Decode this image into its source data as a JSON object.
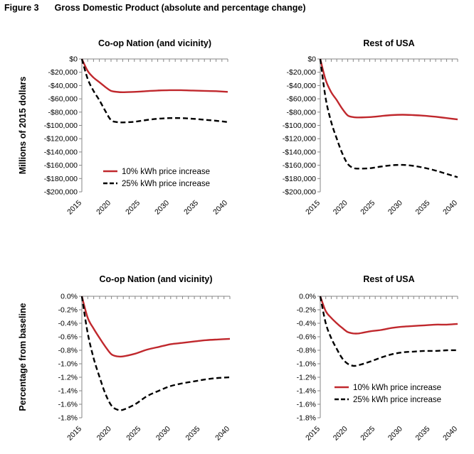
{
  "figure": {
    "number": "Figure 3",
    "title": "Gross Domestic Product (absolute and percentage change)"
  },
  "colors": {
    "series_10": "#c0282d",
    "series_25": "#000000",
    "axis": "#868686"
  },
  "chart_data": [
    {
      "type": "line",
      "title": "Co-op Nation (and vicinity)",
      "ylabel": "Millions of 2015 dollars",
      "xlim": [
        2015,
        2040
      ],
      "ylim": [
        -200000,
        0
      ],
      "x_ticks": [
        2015,
        2020,
        2025,
        2030,
        2035,
        2040
      ],
      "y_ticks": [
        0,
        -20000,
        -40000,
        -60000,
        -80000,
        -100000,
        -120000,
        -140000,
        -160000,
        -180000,
        -200000
      ],
      "y_tick_labels": [
        "$0",
        "-$20,000",
        "-$40,000",
        "-$60,000",
        "-$80,000",
        "-$100,000",
        "-$120,000",
        "-$140,000",
        "-$160,000",
        "-$180,000",
        "-$200,000"
      ],
      "legend": "lower-right",
      "series": [
        {
          "name": "10% kWh price increase",
          "x": [
            2015,
            2016,
            2017,
            2018,
            2019,
            2020,
            2021,
            2022,
            2024,
            2026,
            2028,
            2030,
            2032,
            2034,
            2036,
            2038,
            2040
          ],
          "values": [
            0,
            -18000,
            -28000,
            -35000,
            -42000,
            -48000,
            -49500,
            -50000,
            -49500,
            -48500,
            -47500,
            -47000,
            -47000,
            -47500,
            -48000,
            -48500,
            -49500
          ]
        },
        {
          "name": "25% kWh price increase",
          "x": [
            2015,
            2016,
            2017,
            2018,
            2019,
            2020,
            2021,
            2022,
            2024,
            2026,
            2028,
            2030,
            2032,
            2034,
            2036,
            2038,
            2040
          ],
          "values": [
            0,
            -30000,
            -48000,
            -62000,
            -78000,
            -92000,
            -95000,
            -95500,
            -94500,
            -92000,
            -90000,
            -89000,
            -89000,
            -90000,
            -91500,
            -93000,
            -95000
          ]
        }
      ]
    },
    {
      "type": "line",
      "title": "Rest of USA",
      "xlim": [
        2015,
        2040
      ],
      "ylim": [
        -200000,
        0
      ],
      "x_ticks": [
        2015,
        2020,
        2025,
        2030,
        2035,
        2040
      ],
      "y_ticks": [
        0,
        -20000,
        -40000,
        -60000,
        -80000,
        -100000,
        -120000,
        -140000,
        -160000,
        -180000,
        -200000
      ],
      "y_tick_labels": [
        "$0",
        "-$20,000",
        "-$40,000",
        "-$60,000",
        "-$80,000",
        "-$100,000",
        "-$120,000",
        "-$140,000",
        "-$160,000",
        "-$180,000",
        "-$200,000"
      ],
      "series": [
        {
          "name": "10% kWh price increase",
          "x": [
            2015,
            2016,
            2017,
            2018,
            2019,
            2020,
            2021,
            2022,
            2024,
            2026,
            2028,
            2030,
            2032,
            2034,
            2036,
            2038,
            2040
          ],
          "values": [
            0,
            -32000,
            -50000,
            -62000,
            -75000,
            -85000,
            -87500,
            -88000,
            -87500,
            -86000,
            -84500,
            -84000,
            -84500,
            -85500,
            -87000,
            -89000,
            -91000
          ]
        },
        {
          "name": "25% kWh price increase",
          "x": [
            2015,
            2016,
            2017,
            2018,
            2019,
            2020,
            2021,
            2022,
            2024,
            2026,
            2028,
            2030,
            2032,
            2034,
            2036,
            2038,
            2040
          ],
          "values": [
            0,
            -60000,
            -95000,
            -120000,
            -142000,
            -158000,
            -164000,
            -165000,
            -164500,
            -162000,
            -160000,
            -159500,
            -161000,
            -164000,
            -168000,
            -173000,
            -178000
          ]
        }
      ]
    },
    {
      "type": "line",
      "title": "Co-op Nation (and vicinity)",
      "ylabel": "Percentage from baseline",
      "xlim": [
        2015,
        2040
      ],
      "ylim": [
        -1.8,
        0
      ],
      "x_ticks": [
        2015,
        2020,
        2025,
        2030,
        2035,
        2040
      ],
      "y_ticks": [
        0,
        -0.2,
        -0.4,
        -0.6,
        -0.8,
        -1.0,
        -1.2,
        -1.4,
        -1.6,
        -1.8
      ],
      "y_tick_labels": [
        "0.0%",
        "-0.2%",
        "-0.4%",
        "-0.6%",
        "-0.8%",
        "-1.0%",
        "-1.2%",
        "-1.4%",
        "-1.6%",
        "-1.8%"
      ],
      "series": [
        {
          "name": "10% kWh price increase",
          "x": [
            2015,
            2016,
            2017,
            2018,
            2019,
            2020,
            2021,
            2022,
            2024,
            2026,
            2028,
            2030,
            2032,
            2034,
            2036,
            2038,
            2040
          ],
          "values": [
            0,
            -0.32,
            -0.48,
            -0.62,
            -0.75,
            -0.86,
            -0.89,
            -0.89,
            -0.85,
            -0.79,
            -0.75,
            -0.71,
            -0.69,
            -0.67,
            -0.65,
            -0.64,
            -0.63
          ]
        },
        {
          "name": "25% kWh price increase",
          "x": [
            2015,
            2016,
            2017,
            2018,
            2019,
            2020,
            2021,
            2022,
            2024,
            2026,
            2028,
            2030,
            2032,
            2034,
            2036,
            2038,
            2040
          ],
          "values": [
            0,
            -0.55,
            -0.92,
            -1.2,
            -1.45,
            -1.62,
            -1.68,
            -1.68,
            -1.6,
            -1.48,
            -1.4,
            -1.33,
            -1.29,
            -1.26,
            -1.23,
            -1.21,
            -1.2
          ]
        }
      ]
    },
    {
      "type": "line",
      "title": "Rest of USA",
      "xlim": [
        2015,
        2040
      ],
      "ylim": [
        -1.8,
        0
      ],
      "x_ticks": [
        2015,
        2020,
        2025,
        2030,
        2035,
        2040
      ],
      "y_ticks": [
        0,
        -0.2,
        -0.4,
        -0.6,
        -0.8,
        -1.0,
        -1.2,
        -1.4,
        -1.6,
        -1.8
      ],
      "y_tick_labels": [
        "0.0%",
        "-0.2%",
        "-0.4%",
        "-0.6%",
        "-0.8%",
        "-1.0%",
        "-1.2%",
        "-1.4%",
        "-1.6%",
        "-1.8%"
      ],
      "legend": "lower-right",
      "series": [
        {
          "name": "10% kWh price increase",
          "x": [
            2015,
            2016,
            2017,
            2018,
            2019,
            2020,
            2021,
            2022,
            2024,
            2026,
            2028,
            2030,
            2032,
            2034,
            2036,
            2038,
            2040
          ],
          "values": [
            0,
            -0.22,
            -0.32,
            -0.4,
            -0.47,
            -0.53,
            -0.55,
            -0.55,
            -0.52,
            -0.5,
            -0.47,
            -0.45,
            -0.44,
            -0.43,
            -0.42,
            -0.42,
            -0.41
          ]
        },
        {
          "name": "25% kWh price increase",
          "x": [
            2015,
            2016,
            2017,
            2018,
            2019,
            2020,
            2021,
            2022,
            2024,
            2026,
            2028,
            2030,
            2032,
            2034,
            2036,
            2038,
            2040
          ],
          "values": [
            0,
            -0.4,
            -0.62,
            -0.78,
            -0.92,
            -1.0,
            -1.03,
            -1.02,
            -0.97,
            -0.91,
            -0.86,
            -0.83,
            -0.82,
            -0.81,
            -0.81,
            -0.8,
            -0.8
          ]
        }
      ]
    }
  ]
}
